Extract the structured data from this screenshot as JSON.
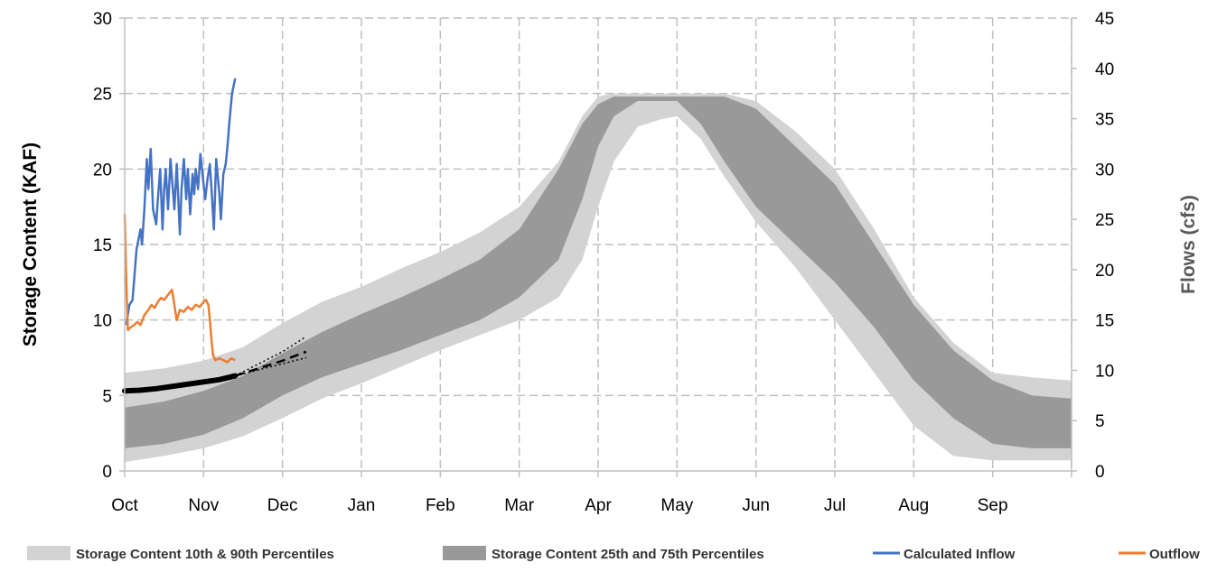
{
  "chart_data": {
    "type": "area",
    "title": "",
    "ylabel": "Storage Content (KAF)",
    "y2label": "Flows (cfs)",
    "xlabel": "",
    "ylim": [
      0,
      30
    ],
    "y2lim": [
      0,
      45
    ],
    "yticks": [
      "0",
      "5",
      "10",
      "15",
      "20",
      "25",
      "30"
    ],
    "y2ticks": [
      "0",
      "5",
      "10",
      "15",
      "20",
      "25",
      "30",
      "35",
      "40",
      "45"
    ],
    "months": [
      "Oct",
      "Nov",
      "Dec",
      "Jan",
      "Feb",
      "Mar",
      "Apr",
      "May",
      "Jun",
      "Jul",
      "Aug",
      "Sep"
    ],
    "xlim": [
      0,
      12
    ],
    "grid": true,
    "legend_position": "bottom",
    "band_p10_p90": {
      "name": "Storage Content 10th & 90th Percentiles",
      "x": [
        0,
        0.5,
        1,
        1.5,
        2,
        2.5,
        3,
        3.5,
        4,
        4.5,
        5,
        5.5,
        5.8,
        6,
        6.2,
        6.5,
        6.8,
        7,
        7.3,
        7.6,
        8,
        8.5,
        9,
        9.5,
        10,
        10.5,
        11,
        11.5,
        12
      ],
      "low": [
        0.6,
        1.0,
        1.5,
        2.3,
        3.5,
        4.8,
        5.8,
        6.9,
        8.0,
        9.0,
        10.0,
        11.5,
        14.0,
        17.5,
        20.5,
        22.8,
        23.3,
        23.5,
        22.0,
        19.5,
        16.5,
        13.5,
        10.0,
        6.5,
        3.0,
        1.0,
        0.7,
        0.7,
        0.7
      ],
      "high": [
        6.5,
        6.8,
        7.3,
        8.2,
        9.8,
        11.2,
        12.2,
        13.4,
        14.5,
        15.8,
        17.5,
        20.5,
        23.5,
        24.8,
        25.0,
        25.0,
        25.0,
        25.0,
        25.0,
        25.0,
        24.5,
        22.5,
        20.0,
        16.0,
        11.5,
        8.5,
        6.5,
        6.2,
        6.0
      ]
    },
    "band_p25_p75": {
      "name": "Storage Content 25th and 75th Percentiles",
      "x": [
        0,
        0.5,
        1,
        1.5,
        2,
        2.5,
        3,
        3.5,
        4,
        4.5,
        5,
        5.5,
        5.8,
        6,
        6.2,
        6.5,
        6.8,
        7,
        7.3,
        7.6,
        8,
        8.5,
        9,
        9.5,
        10,
        10.5,
        11,
        11.5,
        12
      ],
      "low": [
        1.5,
        1.8,
        2.4,
        3.5,
        5.0,
        6.2,
        7.1,
        8.0,
        9.0,
        10.0,
        11.5,
        14.0,
        18.0,
        21.5,
        23.5,
        24.5,
        24.5,
        24.5,
        23.0,
        20.5,
        17.5,
        15.0,
        12.5,
        9.5,
        6.0,
        3.5,
        1.8,
        1.5,
        1.5
      ]
    },
    "band_p25_p75_high": [
      4.2,
      4.6,
      5.3,
      6.3,
      7.8,
      9.2,
      10.4,
      11.5,
      12.7,
      14.0,
      16.0,
      20.0,
      23.0,
      24.3,
      24.8,
      24.8,
      24.8,
      24.8,
      24.8,
      24.8,
      24.0,
      21.5,
      19.0,
      15.0,
      11.0,
      8.0,
      6.0,
      5.0,
      4.8
    ],
    "storage_observed": {
      "x": [
        0,
        0.2,
        0.4,
        0.6,
        0.8,
        1.0,
        1.2,
        1.4
      ],
      "values": [
        5.3,
        5.35,
        5.45,
        5.6,
        5.75,
        5.9,
        6.05,
        6.3
      ]
    },
    "storage_forecast_median": {
      "x": [
        1.4,
        1.7,
        2.0,
        2.3
      ],
      "values": [
        6.3,
        6.8,
        7.3,
        7.9
      ]
    },
    "storage_forecast_high": {
      "x": [
        1.4,
        1.7,
        2.0,
        2.3
      ],
      "values": [
        6.3,
        7.1,
        7.9,
        8.9
      ]
    },
    "storage_forecast_low": {
      "x": [
        1.4,
        1.7,
        2.0,
        2.3
      ],
      "values": [
        6.3,
        6.7,
        7.1,
        7.5
      ]
    },
    "series": [
      {
        "name": "Calculated Inflow",
        "color": "#4472C4",
        "axis": "right",
        "x": [
          0.02,
          0.06,
          0.1,
          0.15,
          0.2,
          0.22,
          0.25,
          0.28,
          0.3,
          0.33,
          0.36,
          0.4,
          0.42,
          0.45,
          0.48,
          0.5,
          0.52,
          0.55,
          0.58,
          0.6,
          0.63,
          0.66,
          0.7,
          0.72,
          0.75,
          0.78,
          0.8,
          0.83,
          0.86,
          0.88,
          0.9,
          0.93,
          0.96,
          1.0,
          1.02,
          1.05,
          1.08,
          1.1,
          1.13,
          1.16,
          1.2,
          1.22,
          1.25,
          1.28,
          1.3,
          1.33,
          1.36,
          1.4
        ],
        "values": [
          14.5,
          16.5,
          17.0,
          22.0,
          24.0,
          22.5,
          26.0,
          31.0,
          28.0,
          32.0,
          26.0,
          24.5,
          27.0,
          30.0,
          24.0,
          28.0,
          30.0,
          26.0,
          31.0,
          29.0,
          26.0,
          30.5,
          23.5,
          28.0,
          31.0,
          27.0,
          30.0,
          25.5,
          29.5,
          27.5,
          30.0,
          28.0,
          31.5,
          28.5,
          27.0,
          29.0,
          30.5,
          28.0,
          24.0,
          31.0,
          27.5,
          25.0,
          29.5,
          30.5,
          32.0,
          35.0,
          37.5,
          39.0
        ]
      },
      {
        "name": "Outflow",
        "color": "#ED7D31",
        "axis": "right",
        "x": [
          0.0,
          0.02,
          0.04,
          0.08,
          0.12,
          0.16,
          0.2,
          0.25,
          0.3,
          0.34,
          0.38,
          0.42,
          0.46,
          0.5,
          0.55,
          0.6,
          0.63,
          0.66,
          0.7,
          0.75,
          0.8,
          0.85,
          0.9,
          0.95,
          1.0,
          1.03,
          1.06,
          1.08,
          1.1,
          1.12,
          1.15,
          1.2,
          1.25,
          1.3,
          1.35,
          1.4
        ],
        "values": [
          25.5,
          19.0,
          14.0,
          14.3,
          14.5,
          14.8,
          14.5,
          15.5,
          16.0,
          16.5,
          16.2,
          16.8,
          17.2,
          17.0,
          17.5,
          18.0,
          16.5,
          15.0,
          16.0,
          15.8,
          16.3,
          16.0,
          16.5,
          16.3,
          16.8,
          17.0,
          16.5,
          15.0,
          13.0,
          11.5,
          11.0,
          11.2,
          11.0,
          10.8,
          11.2,
          11.0
        ]
      }
    ],
    "legend": [
      {
        "label": "Storage Content 10th & 90th Percentiles",
        "type": "patch",
        "color": "#D3D3D3"
      },
      {
        "label": "Storage Content 25th and 75th Percentiles",
        "type": "patch",
        "color": "#999999"
      },
      {
        "label": "Calculated Inflow",
        "type": "line",
        "color": "#4472C4"
      },
      {
        "label": "Outflow",
        "type": "line",
        "color": "#ED7D31"
      }
    ],
    "colors": {
      "band_outer": "#D3D3D3",
      "band_inner": "#999999",
      "storage": "#000000",
      "grid": "#BFBFBF",
      "axis_text_left": "#000000",
      "axis_text_right": "#595959"
    }
  }
}
